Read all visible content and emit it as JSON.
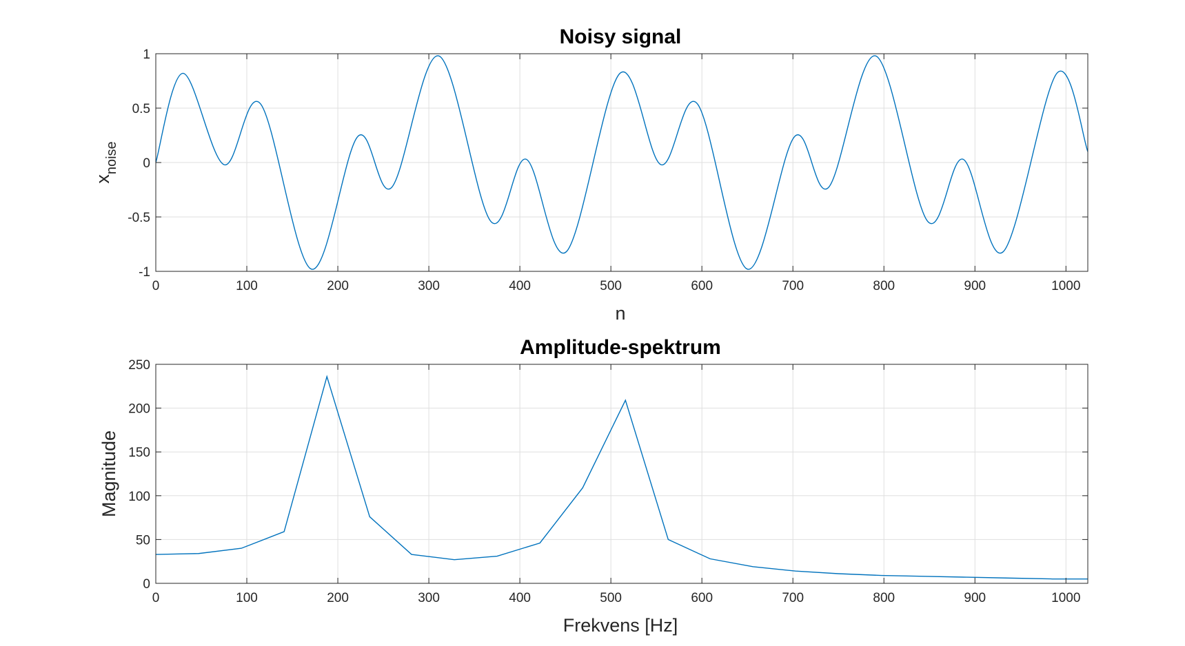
{
  "figure": {
    "background": "#ffffff"
  },
  "chart_data": [
    {
      "type": "line",
      "title": "Noisy signal",
      "xlabel": "n",
      "ylabel_main": "x",
      "ylabel_sub": "noise",
      "xlim": [
        0,
        1024
      ],
      "ylim": [
        -1,
        1
      ],
      "xticks": [
        0,
        100,
        200,
        300,
        400,
        500,
        600,
        700,
        800,
        900,
        1000
      ],
      "yticks": [
        -1,
        -0.5,
        0,
        0.5,
        1
      ],
      "ytick_labels": [
        "-1",
        "-0.5",
        "0",
        "0.5",
        "1"
      ],
      "grid": true,
      "color": "#0072BD",
      "series": [
        {
          "x": [
            0,
            30,
            75,
            115,
            171,
            222,
            259,
            311,
            368,
            407,
            451,
            510,
            555,
            595,
            650,
            702,
            739,
            791,
            848,
            887,
            931,
            990,
            1024
          ],
          "y": [
            0,
            0.82,
            -0.02,
            0.54,
            -0.98,
            0.24,
            -0.23,
            0.98,
            -0.54,
            0.03,
            -0.82,
            0.82,
            -0.02,
            0.54,
            -0.98,
            0.24,
            -0.23,
            0.98,
            -0.54,
            0.03,
            -0.82,
            0.82,
            0.1
          ]
        }
      ]
    },
    {
      "type": "line",
      "title": "Amplitude-spektrum",
      "xlabel": "Frekvens [Hz]",
      "ylabel": "Magnitude",
      "xlim": [
        0,
        1024
      ],
      "ylim": [
        0,
        250
      ],
      "xticks": [
        0,
        100,
        200,
        300,
        400,
        500,
        600,
        700,
        800,
        900,
        1000
      ],
      "yticks": [
        0,
        50,
        100,
        150,
        200,
        250
      ],
      "ytick_labels": [
        "0",
        "50",
        "100",
        "150",
        "200",
        "250"
      ],
      "grid": true,
      "color": "#0072BD",
      "series": [
        {
          "x": [
            0,
            47,
            94,
            141,
            188,
            235,
            281,
            328,
            375,
            422,
            469,
            516,
            563,
            609,
            656,
            703,
            750,
            797,
            844,
            891,
            938,
            985,
            1024
          ],
          "y": [
            33,
            34,
            40,
            59,
            236,
            76,
            33,
            27,
            31,
            46,
            109,
            209,
            50,
            28,
            19,
            14,
            11,
            9,
            8,
            7,
            6,
            5,
            5
          ]
        }
      ]
    }
  ]
}
